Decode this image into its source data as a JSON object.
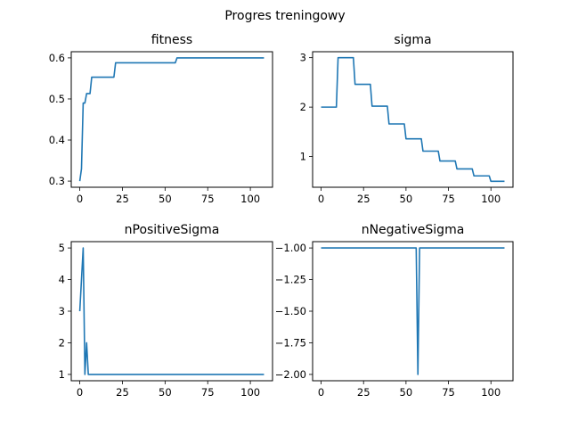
{
  "suptitle": "Progres treningowy",
  "colors": {
    "series": "#1f77b4",
    "axis": "#000000",
    "background": "#ffffff"
  },
  "chart_data": [
    {
      "type": "line",
      "title": "fitness",
      "xlabel": "",
      "ylabel": "",
      "xlim": [
        -5,
        113
      ],
      "ylim": [
        0.285,
        0.615
      ],
      "xticks": [
        0,
        25,
        50,
        75,
        100
      ],
      "xtick_labels": [
        "0",
        "25",
        "50",
        "75",
        "100"
      ],
      "yticks": [
        0.3,
        0.4,
        0.5,
        0.6
      ],
      "ytick_labels": [
        "0.3",
        "0.4",
        "0.5",
        "0.6"
      ],
      "grid": false,
      "series": [
        {
          "x": [
            0,
            1,
            2,
            3,
            4,
            5,
            6,
            7,
            20,
            21,
            56,
            57,
            108
          ],
          "y": [
            0.3,
            0.33,
            0.49,
            0.49,
            0.513,
            0.513,
            0.513,
            0.553,
            0.553,
            0.588,
            0.588,
            0.6,
            0.6
          ]
        }
      ]
    },
    {
      "type": "line",
      "title": "sigma",
      "xlabel": "",
      "ylabel": "",
      "xlim": [
        -5,
        113
      ],
      "ylim": [
        0.38,
        3.12
      ],
      "xticks": [
        0,
        25,
        50,
        75,
        100
      ],
      "xtick_labels": [
        "0",
        "25",
        "50",
        "75",
        "100"
      ],
      "yticks": [
        1,
        2,
        3
      ],
      "ytick_labels": [
        "1",
        "2",
        "3"
      ],
      "grid": false,
      "series": [
        {
          "x": [
            0,
            9,
            10,
            19,
            20,
            29,
            30,
            39,
            40,
            49,
            50,
            59,
            60,
            69,
            70,
            79,
            80,
            89,
            90,
            99,
            100,
            108
          ],
          "y": [
            2.0,
            2.0,
            3.0,
            3.0,
            2.46,
            2.46,
            2.02,
            2.02,
            1.66,
            1.66,
            1.36,
            1.36,
            1.11,
            1.11,
            0.91,
            0.91,
            0.75,
            0.75,
            0.61,
            0.61,
            0.5,
            0.5
          ]
        }
      ]
    },
    {
      "type": "line",
      "title": "nPositiveSigma",
      "xlabel": "",
      "ylabel": "",
      "xlim": [
        -5,
        113
      ],
      "ylim": [
        0.8,
        5.2
      ],
      "xticks": [
        0,
        25,
        50,
        75,
        100
      ],
      "xtick_labels": [
        "0",
        "25",
        "50",
        "75",
        "100"
      ],
      "yticks": [
        1,
        2,
        3,
        4,
        5
      ],
      "ytick_labels": [
        "1",
        "2",
        "3",
        "4",
        "5"
      ],
      "grid": false,
      "series": [
        {
          "x": [
            0,
            1,
            2,
            3,
            4,
            5,
            108
          ],
          "y": [
            3,
            4,
            5,
            1,
            2,
            1,
            1
          ]
        }
      ]
    },
    {
      "type": "line",
      "title": "nNegativeSigma",
      "xlabel": "",
      "ylabel": "",
      "xlim": [
        -5,
        113
      ],
      "ylim": [
        -2.05,
        -0.95
      ],
      "xticks": [
        0,
        25,
        50,
        75,
        100
      ],
      "xtick_labels": [
        "0",
        "25",
        "50",
        "75",
        "100"
      ],
      "yticks": [
        -1.0,
        -1.25,
        -1.5,
        -1.75,
        -2.0
      ],
      "ytick_labels": [
        "−1.00",
        "−1.25",
        "−1.50",
        "−1.75",
        "−2.00"
      ],
      "grid": false,
      "series": [
        {
          "x": [
            0,
            56,
            57,
            58,
            108
          ],
          "y": [
            -1,
            -1,
            -2,
            -1,
            -1
          ]
        }
      ]
    }
  ]
}
